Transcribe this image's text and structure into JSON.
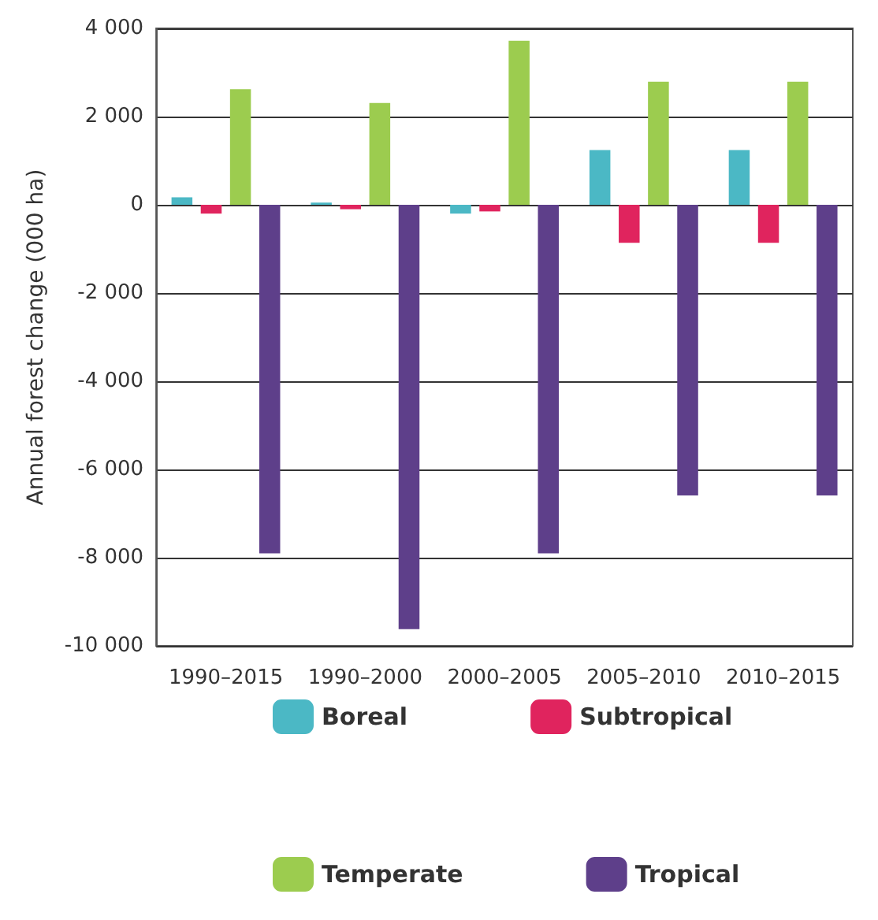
{
  "chart_data": {
    "type": "bar",
    "ylabel": "Annual forest change (000 ha)",
    "categories": [
      "1990–2015",
      "1990–2000",
      "2000–2005",
      "2005–2010",
      "2010–2015"
    ],
    "series": [
      {
        "name": "Boreal",
        "color": "#4bb8c5",
        "values": [
          170,
          50,
          -200,
          1240,
          1240
        ]
      },
      {
        "name": "Subtropical",
        "color": "#e0245e",
        "values": [
          -200,
          -100,
          -150,
          -860,
          -860
        ]
      },
      {
        "name": "Temperate",
        "color": "#9ccc4f",
        "values": [
          2620,
          2310,
          3720,
          2790,
          2790
        ]
      },
      {
        "name": "Tropical",
        "color": "#5e3f8a",
        "values": [
          -7900,
          -9620,
          -7900,
          -6590,
          -6590
        ]
      }
    ],
    "ylim": [
      -10000,
      4000
    ],
    "yticks": [
      {
        "value": -10000,
        "label": "-10 000"
      },
      {
        "value": -8000,
        "label": "-8 000"
      },
      {
        "value": -6000,
        "label": "-6 000"
      },
      {
        "value": -4000,
        "label": "-4 000"
      },
      {
        "value": -2000,
        "label": "-2 000"
      },
      0,
      {
        "value": 2000,
        "label": "2 000"
      },
      {
        "value": 4000,
        "label": "4 000"
      }
    ],
    "grid": "y",
    "legend": "bottom"
  }
}
